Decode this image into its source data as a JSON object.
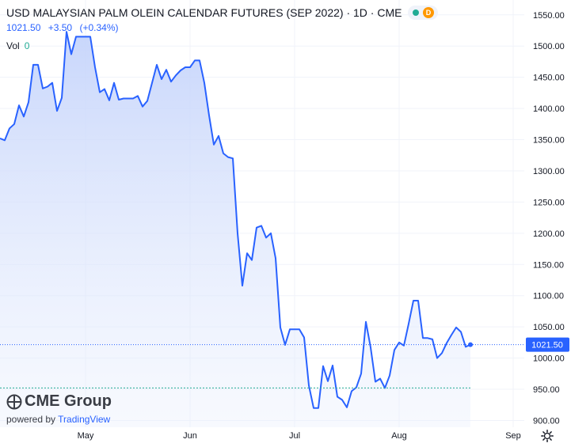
{
  "header": {
    "title": "USD MALAYSIAN PALM OLEIN CALENDAR FUTURES (SEP 2022) · 1D · CME",
    "status_badge": "D",
    "last_price": "1021.50",
    "change": "+3.50",
    "change_pct": "(+0.34%)",
    "volume_label": "Vol",
    "volume_value": "0"
  },
  "branding": {
    "logo_text": "CME Group",
    "powered_by": "powered by",
    "tradingview": "TradingView"
  },
  "colors": {
    "line": "#2962ff",
    "area_fill": "#c5d4fb",
    "price_label": "#2962ff",
    "status_green": "#22ab94",
    "status_orange": "#ff9800"
  },
  "icons": {
    "settings": "gear-icon",
    "logo": "globe-icon"
  },
  "chart_data": {
    "type": "area",
    "ylim": [
      860,
      1570
    ],
    "y_ticks": [
      "1550.00",
      "1500.00",
      "1450.00",
      "1400.00",
      "1350.00",
      "1300.00",
      "1250.00",
      "1200.00",
      "1150.00",
      "1100.00",
      "1050.00",
      "1000.00",
      "950.00",
      "900.00"
    ],
    "x_ticks": [
      {
        "label": "May",
        "x": 18
      },
      {
        "label": "Jun",
        "x": 40
      },
      {
        "label": "Jul",
        "x": 62
      },
      {
        "label": "Aug",
        "x": 84
      },
      {
        "label": "Sep",
        "x": 108
      }
    ],
    "last_value_label": "1021.50",
    "reference_line": 952,
    "series": [
      {
        "points": [
          [
            0,
            1352
          ],
          [
            1,
            1349
          ],
          [
            2,
            1368
          ],
          [
            3,
            1375
          ],
          [
            4,
            1405
          ],
          [
            5,
            1387
          ],
          [
            6,
            1410
          ],
          [
            7,
            1470
          ],
          [
            8,
            1470
          ],
          [
            9,
            1432
          ],
          [
            10,
            1435
          ],
          [
            11,
            1441
          ],
          [
            12,
            1396
          ],
          [
            13,
            1417
          ],
          [
            14,
            1523
          ],
          [
            15,
            1487
          ],
          [
            16,
            1515
          ],
          [
            17,
            1515
          ],
          [
            18,
            1515
          ],
          [
            19,
            1515
          ],
          [
            20,
            1466
          ],
          [
            21,
            1426
          ],
          [
            22,
            1431
          ],
          [
            23,
            1413
          ],
          [
            24,
            1441
          ],
          [
            25,
            1414
          ],
          [
            26,
            1416
          ],
          [
            27,
            1416
          ],
          [
            28,
            1416
          ],
          [
            29,
            1420
          ],
          [
            30,
            1403
          ],
          [
            31,
            1412
          ],
          [
            32,
            1441
          ],
          [
            33,
            1470
          ],
          [
            34,
            1447
          ],
          [
            35,
            1462
          ],
          [
            36,
            1443
          ],
          [
            37,
            1453
          ],
          [
            38,
            1461
          ],
          [
            39,
            1466
          ],
          [
            40,
            1466
          ],
          [
            41,
            1477
          ],
          [
            42,
            1477
          ],
          [
            43,
            1441
          ],
          [
            44,
            1389
          ],
          [
            45,
            1342
          ],
          [
            46,
            1356
          ],
          [
            47,
            1328
          ],
          [
            48,
            1322
          ],
          [
            49,
            1320
          ],
          [
            50,
            1200
          ],
          [
            51,
            1116
          ],
          [
            52,
            1168
          ],
          [
            53,
            1157
          ],
          [
            54,
            1209
          ],
          [
            55,
            1212
          ],
          [
            56,
            1193
          ],
          [
            57,
            1200
          ],
          [
            58,
            1160
          ],
          [
            59,
            1049
          ],
          [
            60,
            1021
          ],
          [
            61,
            1046
          ],
          [
            62,
            1046
          ],
          [
            63,
            1046
          ],
          [
            64,
            1033
          ],
          [
            65,
            956
          ],
          [
            66,
            920
          ],
          [
            67,
            920
          ],
          [
            68,
            987
          ],
          [
            69,
            963
          ],
          [
            70,
            988
          ],
          [
            71,
            938
          ],
          [
            72,
            933
          ],
          [
            73,
            921
          ],
          [
            74,
            947
          ],
          [
            75,
            953
          ],
          [
            76,
            975
          ],
          [
            77,
            1058
          ],
          [
            78,
            1017
          ],
          [
            79,
            962
          ],
          [
            80,
            967
          ],
          [
            81,
            952
          ],
          [
            82,
            972
          ],
          [
            83,
            1013
          ],
          [
            84,
            1025
          ],
          [
            85,
            1020
          ],
          [
            86,
            1055
          ],
          [
            87,
            1092
          ],
          [
            88,
            1092
          ],
          [
            89,
            1032
          ],
          [
            90,
            1032
          ],
          [
            91,
            1030
          ],
          [
            92,
            1000
          ],
          [
            93,
            1008
          ],
          [
            94,
            1024
          ],
          [
            95,
            1037
          ],
          [
            96,
            1049
          ],
          [
            97,
            1042
          ],
          [
            98,
            1018
          ],
          [
            99,
            1021.5
          ]
        ]
      }
    ]
  }
}
